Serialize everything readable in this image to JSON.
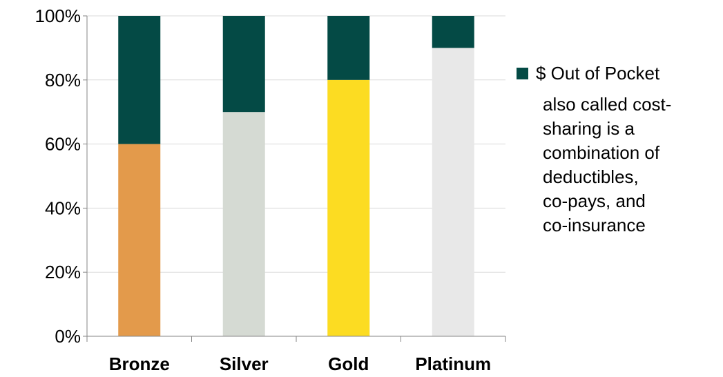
{
  "chart_data": {
    "type": "bar",
    "stacked": true,
    "stack_mode": "percent",
    "categories": [
      "Bronze",
      "Silver",
      "Gold",
      "Platinum"
    ],
    "series": [
      {
        "role": "plan-share",
        "values": [
          60,
          70,
          80,
          90
        ],
        "colors": [
          "#E39A4B",
          "#D5DAD3",
          "#FCDC22",
          "#E8E8E8"
        ]
      },
      {
        "name": "$ Out of Pocket",
        "values": [
          40,
          30,
          20,
          10
        ],
        "color": "#044A45"
      }
    ],
    "ylim": [
      0,
      100
    ],
    "yticks": [
      0,
      20,
      40,
      60,
      80,
      100
    ],
    "ytick_labels": [
      "0%",
      "20%",
      "40%",
      "60%",
      "80%",
      "100%"
    ],
    "grid": true,
    "legend_position": "right",
    "title": "",
    "xlabel": "",
    "ylabel": ""
  },
  "legend": {
    "out_of_pocket_label": "$ Out of Pocket",
    "note_lines": [
      "also called cost-",
      "sharing is a",
      "combination of",
      "deductibles,",
      "co-pays, and",
      "co-insurance"
    ]
  }
}
